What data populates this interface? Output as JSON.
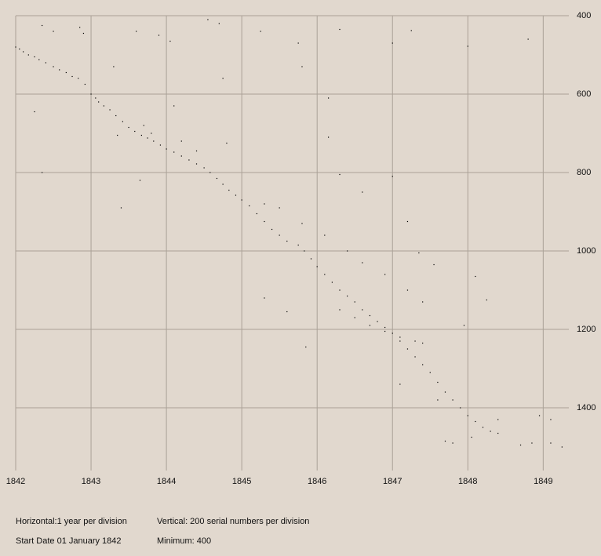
{
  "chart_data": {
    "type": "scatter",
    "x": [
      1842.0,
      1842.05,
      1842.1,
      1842.17,
      1842.25,
      1842.31,
      1842.4,
      1842.5,
      1842.58,
      1842.67,
      1842.75,
      1842.83,
      1842.92,
      1843.0,
      1843.06,
      1843.1,
      1843.17,
      1843.25,
      1843.33,
      1843.42,
      1843.5,
      1843.58,
      1843.67,
      1843.75,
      1843.83,
      1843.92,
      1844.0,
      1844.1,
      1844.2,
      1844.3,
      1844.4,
      1844.5,
      1844.58,
      1844.67,
      1844.75,
      1844.83,
      1844.92,
      1845.0,
      1845.1,
      1845.2,
      1845.3,
      1845.4,
      1845.5,
      1845.6,
      1845.75,
      1845.83,
      1845.92,
      1846.0,
      1846.1,
      1846.2,
      1846.3,
      1846.4,
      1846.5,
      1846.6,
      1846.7,
      1846.8,
      1846.9,
      1847.0,
      1847.1,
      1847.2,
      1847.3,
      1847.4,
      1847.5,
      1847.6,
      1847.7,
      1847.8,
      1847.9,
      1848.0,
      1848.1,
      1848.2,
      1848.3,
      1848.4,
      1848.7,
      1848.85,
      1849.1,
      1849.25,
      1845.3,
      1845.5,
      1845.8,
      1846.1,
      1846.4,
      1846.6,
      1846.9,
      1847.2,
      1847.4,
      1846.3,
      1846.5,
      1846.7,
      1846.9,
      1847.1,
      1847.3,
      1847.4,
      1843.7,
      1843.8,
      1844.2,
      1844.4,
      1842.35,
      1842.5,
      1842.85,
      1842.9,
      1843.6,
      1843.9,
      1844.05,
      1844.55,
      1844.7,
      1845.25,
      1845.75,
      1846.3,
      1847.0,
      1847.25,
      1848.0,
      1848.8,
      1842.25,
      1842.35,
      1843.4,
      1843.65,
      1844.8,
      1845.8,
      1846.15,
      1846.15,
      1846.3,
      1846.6,
      1847.0,
      1847.2,
      1847.35,
      1847.55,
      1848.1,
      1848.25,
      1847.95,
      1845.6,
      1845.85,
      1845.3,
      1844.75,
      1843.35,
      1843.3,
      1844.1,
      1848.95,
      1849.1,
      1847.7,
      1847.8,
      1848.05,
      1848.4,
      1847.6,
      1847.1
    ],
    "values": [
      480,
      485,
      492,
      500,
      505,
      512,
      520,
      530,
      538,
      545,
      555,
      560,
      575,
      600,
      610,
      620,
      630,
      640,
      655,
      670,
      685,
      695,
      705,
      712,
      720,
      730,
      740,
      748,
      758,
      768,
      778,
      788,
      800,
      815,
      830,
      845,
      858,
      870,
      885,
      905,
      925,
      945,
      960,
      975,
      985,
      1000,
      1020,
      1040,
      1060,
      1080,
      1100,
      1115,
      1130,
      1150,
      1165,
      1180,
      1195,
      1210,
      1230,
      1250,
      1270,
      1290,
      1310,
      1335,
      1360,
      1380,
      1400,
      1420,
      1435,
      1450,
      1460,
      1465,
      1495,
      1490,
      1490,
      1500,
      880,
      890,
      930,
      960,
      1000,
      1030,
      1060,
      1100,
      1130,
      1150,
      1170,
      1190,
      1205,
      1220,
      1230,
      1235,
      680,
      700,
      720,
      745,
      425,
      440,
      430,
      445,
      440,
      450,
      465,
      410,
      420,
      440,
      470,
      435,
      470,
      438,
      478,
      460,
      645,
      800,
      890,
      820,
      725,
      530,
      610,
      710,
      805,
      850,
      810,
      925,
      1005,
      1035,
      1065,
      1125,
      1190,
      1155,
      1245,
      1120,
      560,
      705,
      530,
      630,
      1420,
      1430,
      1485,
      1490,
      1475,
      1430,
      1380,
      1340
    ],
    "color": "#000000",
    "xlim": [
      1842,
      1849.34
    ],
    "ylim": [
      400,
      1560
    ],
    "y_inverted": true,
    "y_axis_side": "right",
    "xticks": [
      1842,
      1843,
      1844,
      1845,
      1846,
      1847,
      1848,
      1849
    ],
    "yticks": [
      400,
      600,
      800,
      1000,
      1200,
      1400
    ],
    "grid": true,
    "notes": [
      "Horizontal:1 year per division",
      "Vertical: 200 serial numbers per division",
      "Start Date 01 January 1842",
      "Minimum: 400"
    ]
  }
}
